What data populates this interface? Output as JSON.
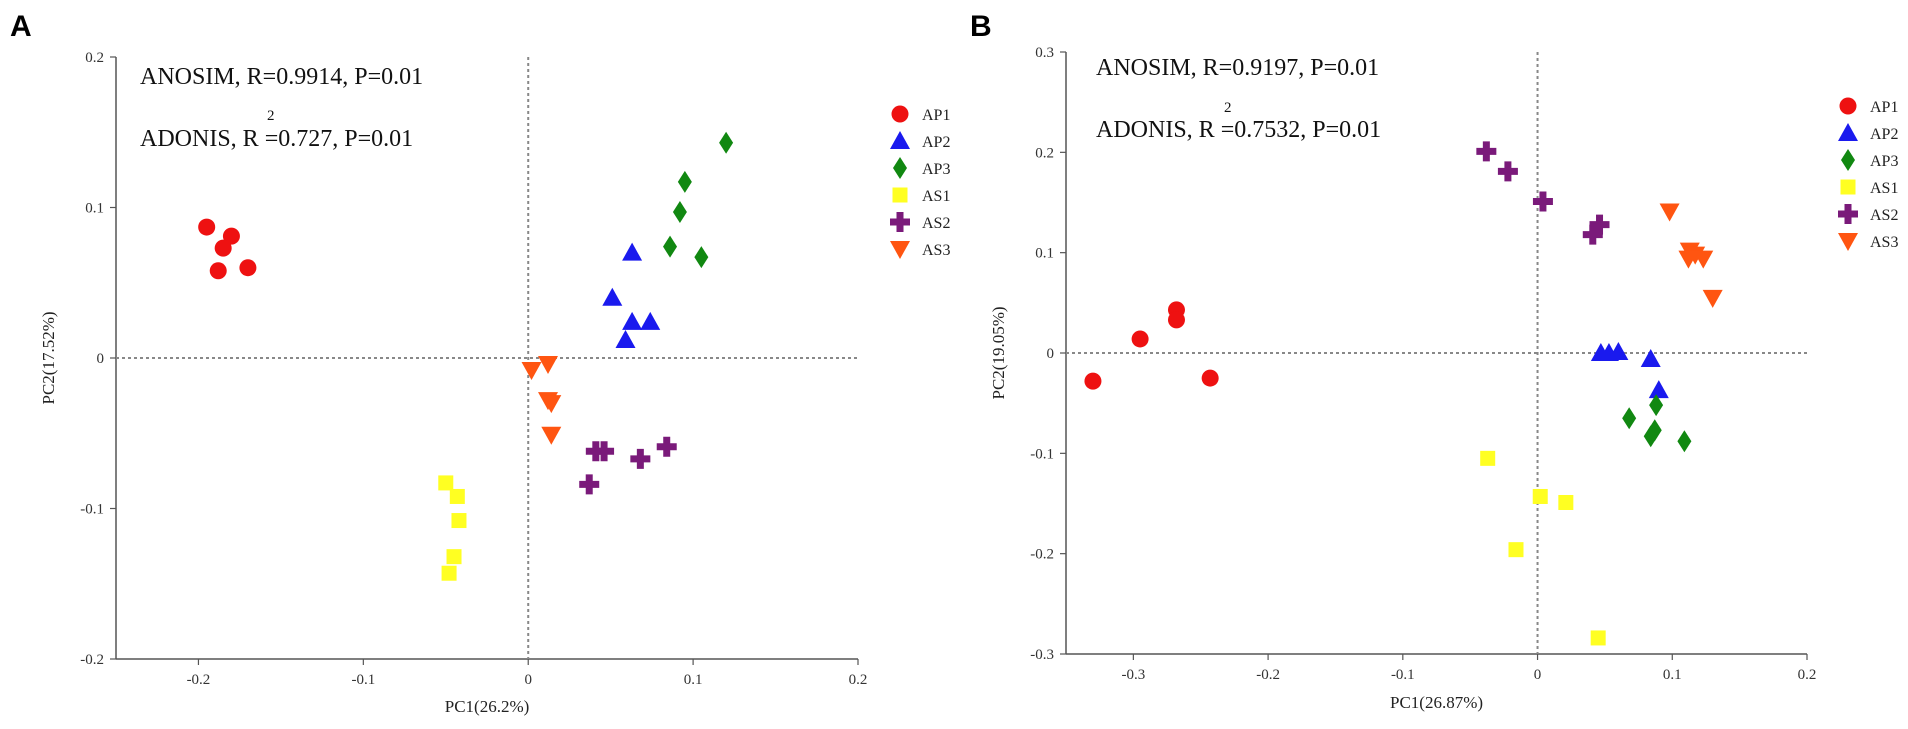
{
  "chart_data": [
    {
      "panel": "A",
      "type": "scatter",
      "xlabel": "PC1(26.2%)",
      "ylabel": "PC2(17.52%)",
      "xlim": [
        -0.25,
        0.2
      ],
      "ylim": [
        -0.2,
        0.2
      ],
      "xticks": [
        -0.2,
        -0.1,
        0,
        0.1,
        0.2
      ],
      "yticks": [
        -0.2,
        -0.1,
        0,
        0.1,
        0.2
      ],
      "xtick_labels": [
        "-0.2",
        "-0.1",
        "0",
        "0.1",
        "0.2"
      ],
      "ytick_labels": [
        "-0.2",
        "-0.1",
        "0",
        "0.1",
        "0.2"
      ],
      "annotations": {
        "anosim": "ANOSIM, R=0.9914, P=0.01",
        "adonis_prefix": "ADONIS, R",
        "adonis_sup": "2",
        "adonis_suffix": "=0.727, P=0.01"
      },
      "series": [
        {
          "name": "AP1",
          "marker": "circle",
          "color": "#ee1111",
          "points": [
            [
              -0.195,
              0.087
            ],
            [
              -0.18,
              0.081
            ],
            [
              -0.185,
              0.073
            ],
            [
              -0.17,
              0.06
            ],
            [
              -0.188,
              0.058
            ]
          ]
        },
        {
          "name": "AP2",
          "marker": "triangle-up",
          "color": "#1a1aee",
          "points": [
            [
              0.063,
              0.07
            ],
            [
              0.051,
              0.04
            ],
            [
              0.063,
              0.024
            ],
            [
              0.074,
              0.024
            ],
            [
              0.059,
              0.012
            ]
          ]
        },
        {
          "name": "AP3",
          "marker": "diamond",
          "color": "#118811",
          "points": [
            [
              0.12,
              0.143
            ],
            [
              0.095,
              0.117
            ],
            [
              0.092,
              0.097
            ],
            [
              0.086,
              0.074
            ],
            [
              0.105,
              0.067
            ]
          ]
        },
        {
          "name": "AS1",
          "marker": "square",
          "color": "#ffff22",
          "points": [
            [
              -0.05,
              -0.083
            ],
            [
              -0.043,
              -0.092
            ],
            [
              -0.042,
              -0.108
            ],
            [
              -0.045,
              -0.132
            ],
            [
              -0.048,
              -0.143
            ]
          ]
        },
        {
          "name": "AS2",
          "marker": "plus",
          "color": "#7a1a7a",
          "points": [
            [
              0.041,
              -0.062
            ],
            [
              0.046,
              -0.062
            ],
            [
              0.068,
              -0.067
            ],
            [
              0.084,
              -0.059
            ],
            [
              0.037,
              -0.084
            ]
          ]
        },
        {
          "name": "AS3",
          "marker": "triangle-down",
          "color": "#ff5511",
          "points": [
            [
              0.012,
              -0.004
            ],
            [
              0.002,
              -0.008
            ],
            [
              0.012,
              -0.028
            ],
            [
              0.014,
              -0.03
            ],
            [
              0.014,
              -0.051
            ]
          ]
        }
      ]
    },
    {
      "panel": "B",
      "type": "scatter",
      "xlabel": "PC1(26.87%)",
      "ylabel": "PC2(19.05%)",
      "xlim": [
        -0.35,
        0.2
      ],
      "ylim": [
        -0.3,
        0.3
      ],
      "xticks": [
        -0.3,
        -0.2,
        -0.1,
        0,
        0.1,
        0.2
      ],
      "yticks": [
        -0.3,
        -0.2,
        -0.1,
        0,
        0.1,
        0.2,
        0.3
      ],
      "xtick_labels": [
        "-0.3",
        "-0.2",
        "-0.1",
        "0",
        "0.1",
        "0.2"
      ],
      "ytick_labels": [
        "-0.3",
        "-0.2",
        "-0.1",
        "0",
        "0.1",
        "0.2",
        "0.3"
      ],
      "annotations": {
        "anosim": "ANOSIM, R=0.9197, P=0.01",
        "adonis_prefix": "ADONIS, R",
        "adonis_sup": "2",
        "adonis_suffix": "=0.7532, P=0.01"
      },
      "series": [
        {
          "name": "AP1",
          "marker": "circle",
          "color": "#ee1111",
          "points": [
            [
              -0.33,
              -0.028
            ],
            [
              -0.295,
              0.014
            ],
            [
              -0.268,
              0.043
            ],
            [
              -0.268,
              0.033
            ],
            [
              -0.243,
              -0.025
            ]
          ]
        },
        {
          "name": "AP2",
          "marker": "triangle-up",
          "color": "#1a1aee",
          "points": [
            [
              0.047,
              0.0
            ],
            [
              0.06,
              0.001
            ],
            [
              0.084,
              -0.006
            ],
            [
              0.09,
              -0.037
            ],
            [
              0.053,
              0.0
            ]
          ]
        },
        {
          "name": "AP3",
          "marker": "diamond",
          "color": "#118811",
          "points": [
            [
              0.068,
              -0.065
            ],
            [
              0.088,
              -0.052
            ],
            [
              0.087,
              -0.077
            ],
            [
              0.084,
              -0.083
            ],
            [
              0.109,
              -0.088
            ]
          ]
        },
        {
          "name": "AS1",
          "marker": "square",
          "color": "#ffff22",
          "points": [
            [
              -0.037,
              -0.105
            ],
            [
              -0.016,
              -0.196
            ],
            [
              0.002,
              -0.143
            ],
            [
              0.021,
              -0.149
            ],
            [
              0.045,
              -0.284
            ]
          ]
        },
        {
          "name": "AS2",
          "marker": "plus",
          "color": "#7a1a7a",
          "points": [
            [
              -0.038,
              0.201
            ],
            [
              -0.022,
              0.181
            ],
            [
              0.004,
              0.151
            ],
            [
              0.046,
              0.128
            ],
            [
              0.041,
              0.118
            ]
          ]
        },
        {
          "name": "AS3",
          "marker": "triangle-down",
          "color": "#ff5511",
          "points": [
            [
              0.098,
              0.141
            ],
            [
              0.113,
              0.102
            ],
            [
              0.117,
              0.098
            ],
            [
              0.112,
              0.094
            ],
            [
              0.123,
              0.094
            ],
            [
              0.13,
              0.055
            ]
          ]
        }
      ]
    }
  ],
  "panels": {
    "a_label": "A",
    "b_label": "B"
  }
}
